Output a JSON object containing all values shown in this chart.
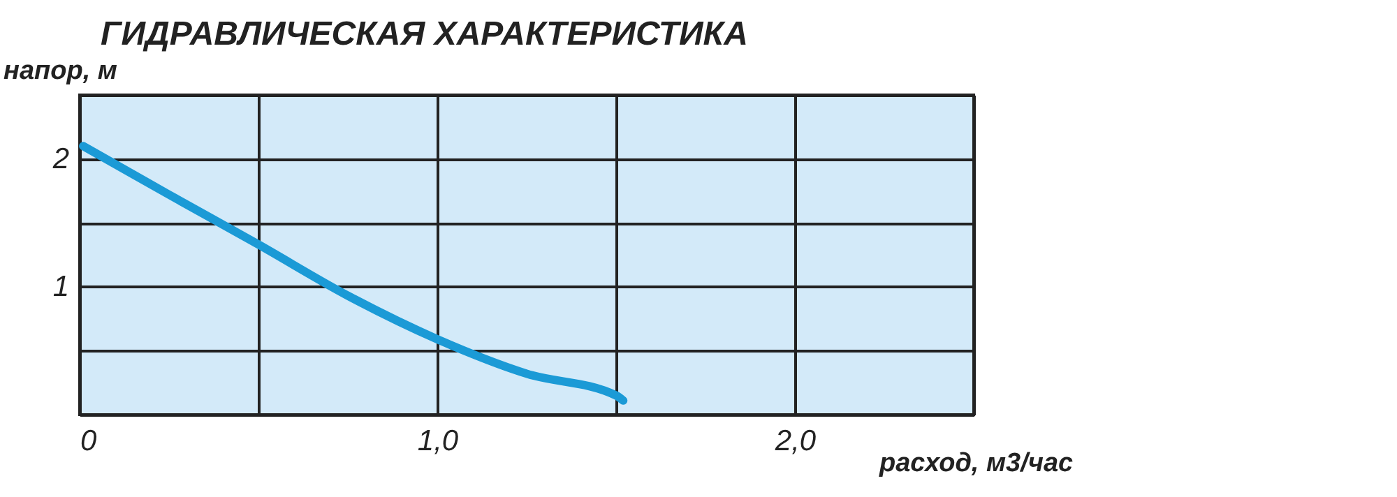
{
  "chart_data": {
    "type": "line",
    "title": "ГИДРАВЛИЧЕСКАЯ ХАРАКТЕРИСТИКА",
    "xlabel": "расход, м3/час",
    "ylabel": "напор, м",
    "x": [
      0.01,
      0.25,
      0.5,
      0.75,
      1.0,
      1.25,
      1.5,
      1.52
    ],
    "series": [
      {
        "color": "#1b9ad6",
        "values": [
          2.1,
          1.72,
          1.33,
          0.93,
          0.59,
          0.32,
          0.15,
          0.11
        ]
      }
    ],
    "xlim": [
      0,
      2.5
    ],
    "ylim": [
      0,
      2.5
    ],
    "xticks": [
      0,
      {
        "value": 0.5,
        "label": null
      },
      {
        "value": 1,
        "label": "1,0"
      },
      {
        "value": 1.5,
        "label": null
      },
      {
        "value": 2,
        "label": "2,0"
      },
      {
        "value": 2.5,
        "label": null
      }
    ],
    "yticks": [
      {
        "value": 0,
        "label": null
      },
      {
        "value": 0.5,
        "label": null
      },
      1,
      {
        "value": 1.5,
        "label": null
      },
      2,
      {
        "value": 2.5,
        "label": null
      }
    ],
    "grid": true,
    "marker": "none",
    "line_style": "solid"
  }
}
